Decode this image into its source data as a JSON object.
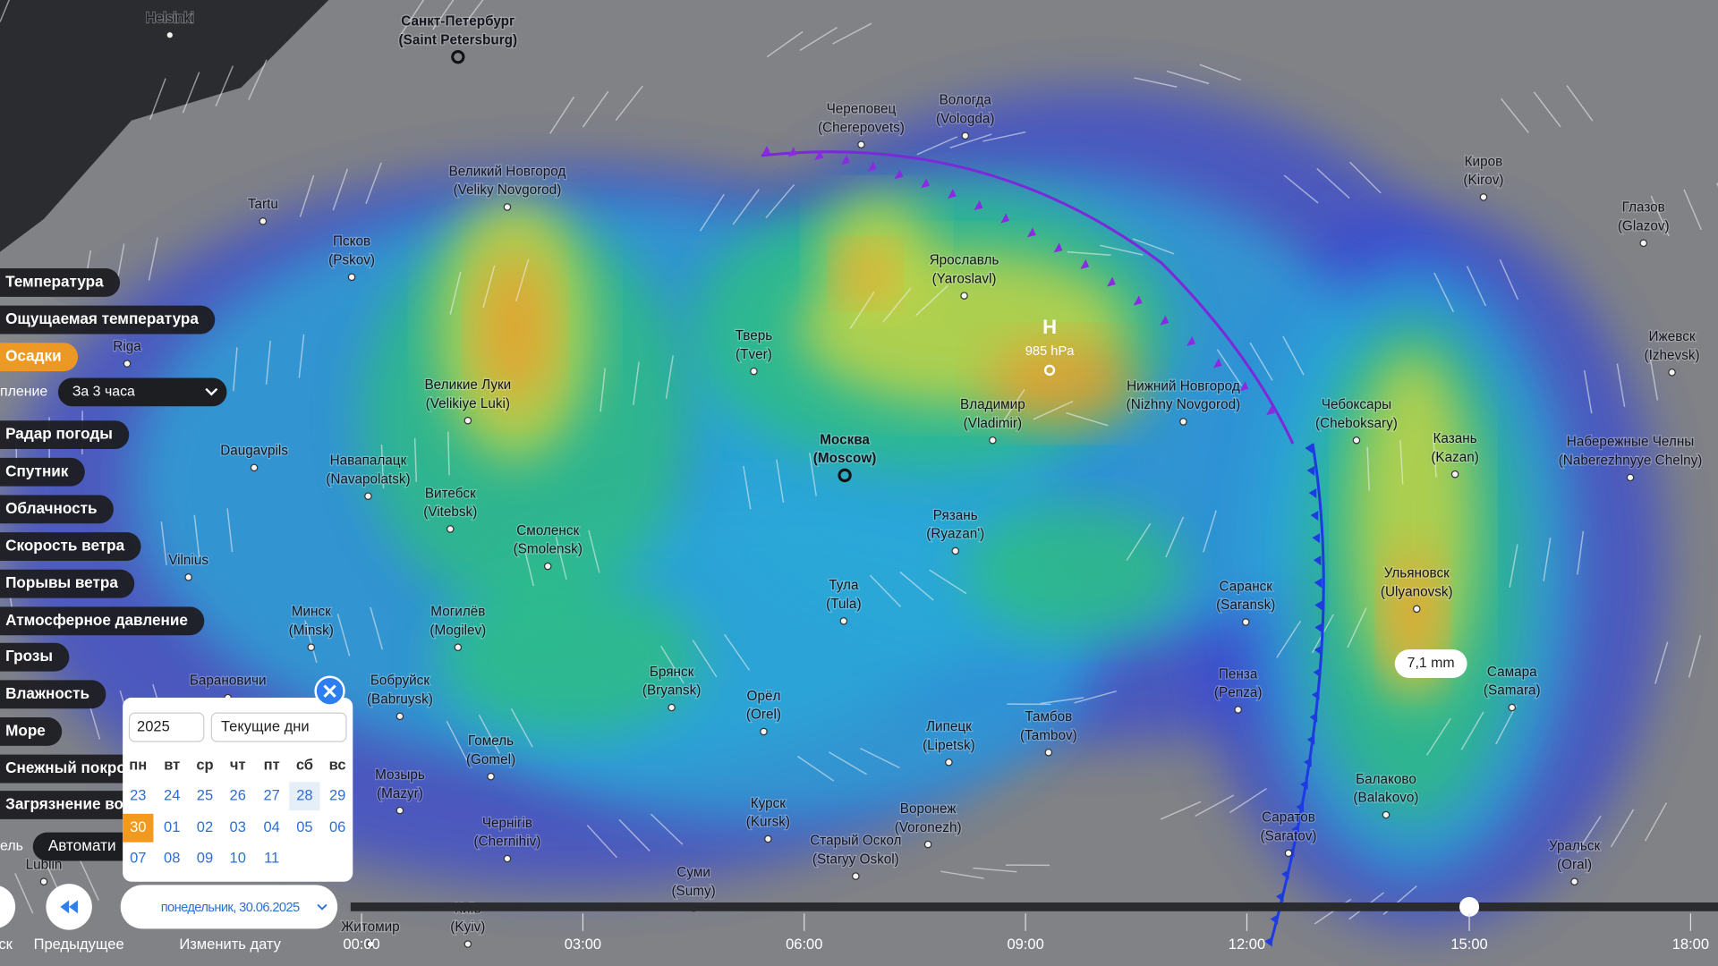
{
  "menu": {
    "items": [
      "Температура",
      "Ощущаемая температура",
      "Осадки",
      "Радар погоды",
      "Спутник",
      "Облачность",
      "Скорость ветра",
      "Порывы ветра",
      "Атмосферное давление",
      "Грозы",
      "Влажность",
      "Море",
      "Снежный покро",
      "Загрязнение во"
    ],
    "precip_label": "пление",
    "precip_period": "За 3 часа",
    "model_label": "ель",
    "model_value": "Автомати"
  },
  "map": {
    "cities": [
      {
        "name": "Helsinki"
      },
      {
        "name": "Санкт-Петербург",
        "latin": "(Saint Petersburg)"
      },
      {
        "name": "Череповец",
        "latin": "(Cherepovets)"
      },
      {
        "name": "Вологда",
        "latin": "(Vologda)"
      },
      {
        "name": "Киров",
        "latin": "(Kirov)"
      },
      {
        "name": "Глазов",
        "latin": "(Glazov)"
      },
      {
        "name": "Великий Новгород",
        "latin": "(Veliky Novgorod)"
      },
      {
        "name": "Tartu"
      },
      {
        "name": "Псков",
        "latin": "(Pskov)"
      },
      {
        "name": "Ярославль",
        "latin": "(Yaroslavl)"
      },
      {
        "name": "Ижевск",
        "latin": "(Izhevsk)"
      },
      {
        "name": "Тверь",
        "latin": "(Tver)"
      },
      {
        "name": "Riga"
      },
      {
        "name": "Великие Луки",
        "latin": "(Velikiye Luki)"
      },
      {
        "name": "Владимир",
        "latin": "(Vladimir)"
      },
      {
        "name": "Нижний Новгород",
        "latin": "(Nizhny Novgorod)"
      },
      {
        "name": "Чебоксары",
        "latin": "(Cheboksary)"
      },
      {
        "name": "Казань",
        "latin": "(Kazan)"
      },
      {
        "name": "Набережные Челны",
        "latin": "(Naberezhnyye Chelny)"
      },
      {
        "name": "Daugavpils"
      },
      {
        "name": "Навапалацк",
        "latin": "(Navapolatsk)"
      },
      {
        "name": "Москва",
        "latin": "(Moscow)"
      },
      {
        "name": "Витебск",
        "latin": "(Vitebsk)"
      },
      {
        "name": "Смоленск",
        "latin": "(Smolensk)"
      },
      {
        "name": "Рязань",
        "latin": "(Ryazan')"
      },
      {
        "name": "Саранск",
        "latin": "(Saransk)"
      },
      {
        "name": "Ульяновск",
        "latin": "(Ulyanovsk)"
      },
      {
        "name": "Vilnius"
      },
      {
        "name": "Тула",
        "latin": "(Tula)"
      },
      {
        "name": "Минск",
        "latin": "(Minsk)"
      },
      {
        "name": "Могилёв",
        "latin": "(Mogilev)"
      },
      {
        "name": "Брянск",
        "latin": "(Bryansk)"
      },
      {
        "name": "Пенза",
        "latin": "(Penza)"
      },
      {
        "name": "Самара",
        "latin": "(Samara)"
      },
      {
        "name": "Барановичи"
      },
      {
        "name": "Бобруйск",
        "latin": "(Babruysk)"
      },
      {
        "name": "Орёл",
        "latin": "(Orel)"
      },
      {
        "name": "Липецк",
        "latin": "(Lipetsk)"
      },
      {
        "name": "Тамбов",
        "latin": "(Tambov)"
      },
      {
        "name": "Гомель",
        "latin": "(Gomel)"
      },
      {
        "name": "Мозырь",
        "latin": "(Mazyr)"
      },
      {
        "name": "Балаково",
        "latin": "(Balakovo)"
      },
      {
        "name": "Курск",
        "latin": "(Kursk)"
      },
      {
        "name": "Воронеж",
        "latin": "(Voronezh)"
      },
      {
        "name": "Чернігів",
        "latin": "(Chernihiv)"
      },
      {
        "name": "Саратов",
        "latin": "(Saratov)"
      },
      {
        "name": "Старый Оскол",
        "latin": "(Staryy Oskol)"
      },
      {
        "name": "Уральск",
        "latin": "(Oral)"
      },
      {
        "name": "Суми",
        "latin": "(Sumy)"
      },
      {
        "name": "Lublin"
      },
      {
        "name": "Житомир"
      },
      {
        "name": "Київ",
        "latin": "(Kyiv)"
      }
    ],
    "pressure_center": {
      "symbol": "H",
      "value": "985 hPa"
    },
    "tooltip": "7,1 mm"
  },
  "calendar": {
    "year": "2025",
    "range": "Текущие дни",
    "weekdays": [
      "пн",
      "вт",
      "ср",
      "чт",
      "пт",
      "сб",
      "вс"
    ],
    "weeks": [
      [
        "23",
        "24",
        "25",
        "26",
        "27",
        "28",
        "29"
      ],
      [
        "30",
        "01",
        "02",
        "03",
        "04",
        "05",
        "06"
      ],
      [
        "07",
        "08",
        "09",
        "10",
        "11"
      ]
    ]
  },
  "timeline": {
    "play_label": "ск",
    "prev_label": "Предыдущее",
    "change_label": "Изменить дату",
    "date": "понедельник, 30.06.2025",
    "times": [
      "00:00",
      "03:00",
      "06:00",
      "09:00",
      "12:00",
      "15:00",
      "18:00"
    ]
  }
}
